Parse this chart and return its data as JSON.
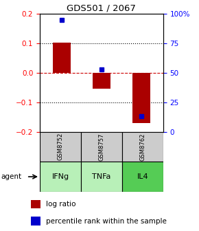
{
  "title": "GDS501 / 2067",
  "samples": [
    "GSM8752",
    "GSM8757",
    "GSM8762"
  ],
  "agents": [
    "IFNg",
    "TNFa",
    "IL4"
  ],
  "log_ratios": [
    0.103,
    -0.055,
    -0.17
  ],
  "percentile_ranks": [
    95.0,
    53.0,
    13.0
  ],
  "ylim_left": [
    -0.2,
    0.2
  ],
  "ylim_right": [
    0,
    100
  ],
  "yticks_left": [
    -0.2,
    -0.1,
    0.0,
    0.1,
    0.2
  ],
  "yticks_right": [
    0,
    25,
    50,
    75,
    100
  ],
  "ytick_labels_right": [
    "0",
    "25",
    "50",
    "75",
    "100%"
  ],
  "bar_color": "#aa0000",
  "dot_color": "#0000cc",
  "zero_line_color": "#cc0000",
  "sample_bg_color": "#cccccc",
  "agent_bg_light": "#b8f0b8",
  "agent_bg_dark": "#55cc55",
  "bar_width": 0.45,
  "figsize": [
    2.9,
    3.36
  ],
  "dpi": 100
}
